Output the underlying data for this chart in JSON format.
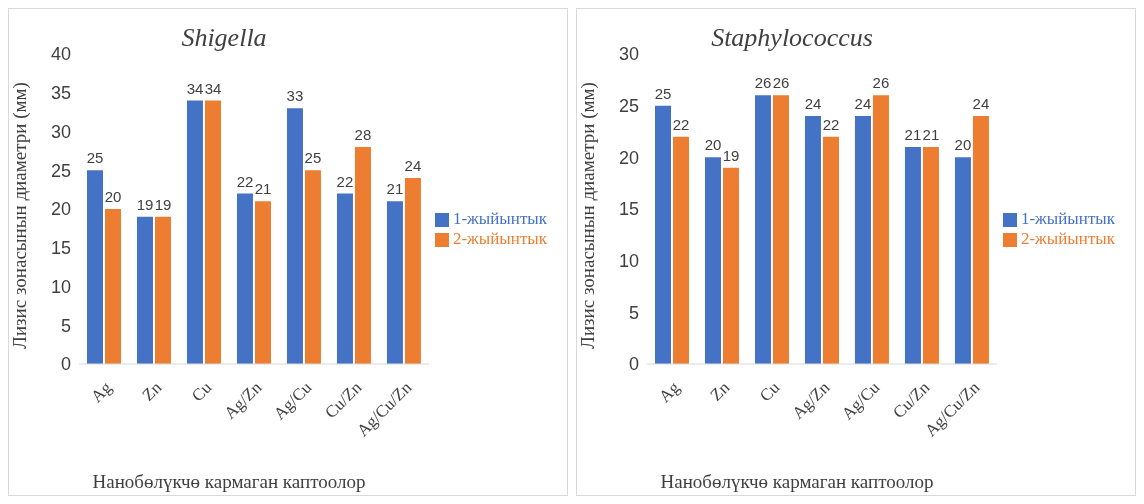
{
  "chart_data": [
    {
      "type": "bar",
      "title": "Shigella",
      "xlabel": "Нанобөлүкчө кармаган каптоолор",
      "ylabel": "Лизис зонасынын диаметри (мм)",
      "categories": [
        "Ag",
        "Zn",
        "Cu",
        "Ag/Zn",
        "Ag/Cu",
        "Cu/Zn",
        "Ag/Cu/Zn"
      ],
      "series": [
        {
          "name": "1-жыйынтык",
          "color": "#4472c4",
          "values": [
            25,
            19,
            34,
            22,
            33,
            22,
            21
          ]
        },
        {
          "name": "2-жыйынтык",
          "color": "#ed7d31",
          "values": [
            20,
            19,
            34,
            21,
            25,
            28,
            24
          ]
        }
      ],
      "ylim": [
        0,
        40
      ],
      "yticks": [
        0,
        5,
        10,
        15,
        20,
        25,
        30,
        35,
        40
      ],
      "grid": false,
      "legend": "right",
      "data_labels": true
    },
    {
      "type": "bar",
      "title": "Staphylococcus",
      "xlabel": "Нанобөлүкчө кармаган каптоолор",
      "ylabel": "Лизис зонасынын диаметри (мм)",
      "categories": [
        "Ag",
        "Zn",
        "Cu",
        "Ag/Zn",
        "Ag/Cu",
        "Cu/Zn",
        "Ag/Cu/Zn"
      ],
      "series": [
        {
          "name": "1-жыйынтык",
          "color": "#4472c4",
          "values": [
            25,
            20,
            26,
            24,
            24,
            21,
            20
          ]
        },
        {
          "name": "2-жыйынтык",
          "color": "#ed7d31",
          "values": [
            22,
            19,
            26,
            22,
            26,
            21,
            24
          ]
        }
      ],
      "ylim": [
        0,
        30
      ],
      "yticks": [
        0,
        5,
        10,
        15,
        20,
        25,
        30
      ],
      "grid": false,
      "legend": "right",
      "data_labels": true
    }
  ]
}
